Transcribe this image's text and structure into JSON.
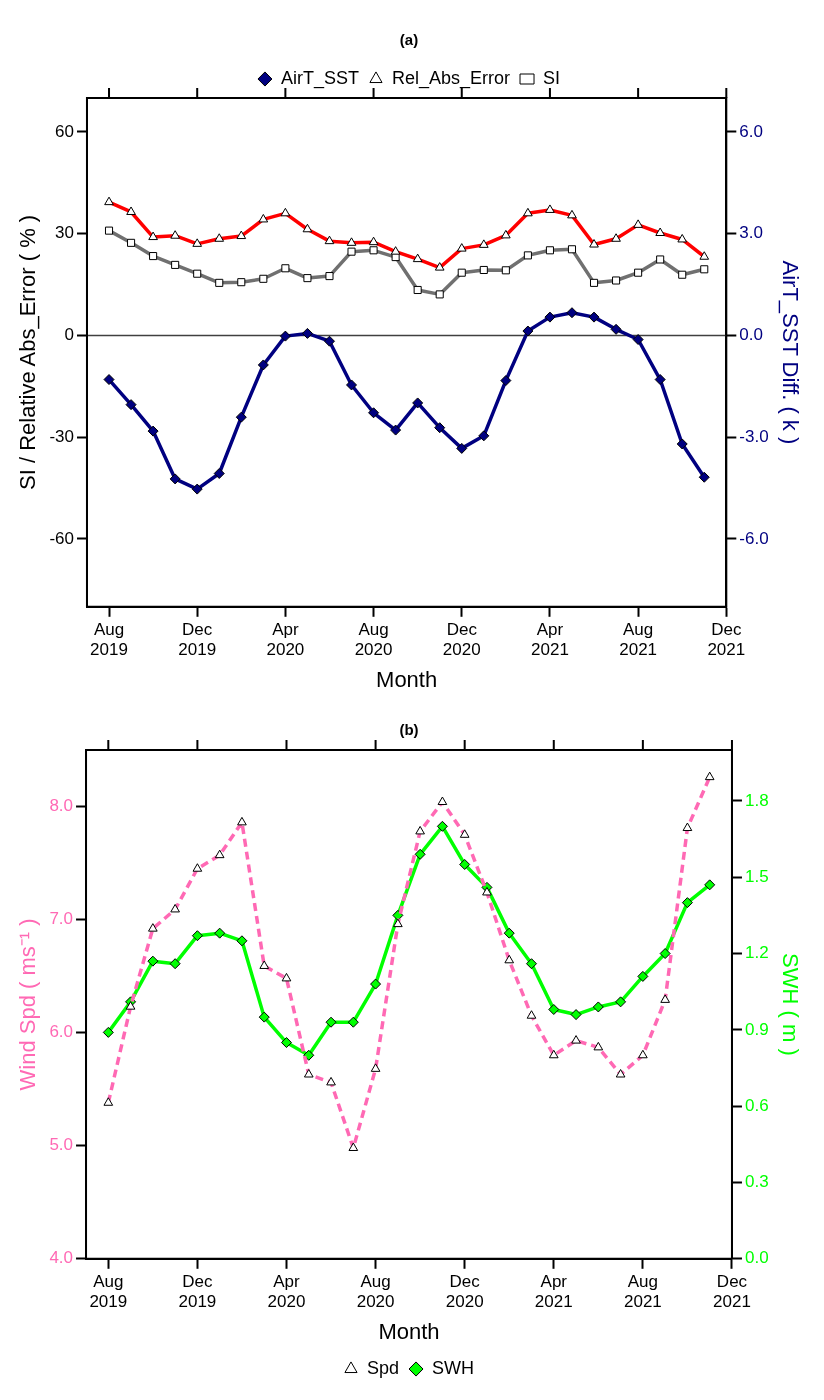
{
  "chart_data": [
    {
      "type": "line",
      "title": "(a)",
      "xlabel": "Month",
      "ylabel": "SI / Relative Abs_Error ( % )",
      "y2label": "AirT_SST Diff. ( k )",
      "x": [
        "2019-08",
        "2019-09",
        "2019-10",
        "2019-11",
        "2019-12",
        "2020-01",
        "2020-02",
        "2020-03",
        "2020-04",
        "2020-05",
        "2020-06",
        "2020-07",
        "2020-08",
        "2020-09",
        "2020-10",
        "2020-11",
        "2020-12",
        "2021-01",
        "2021-02",
        "2021-03",
        "2021-04",
        "2021-05",
        "2021-06",
        "2021-07",
        "2021-08",
        "2021-09",
        "2021-10",
        "2021-11"
      ],
      "xlim": [
        "2019-07",
        "2021-12"
      ],
      "xticks": [
        {
          "value": "2019-08",
          "label": "Aug 2019"
        },
        {
          "value": "2019-12",
          "label": "Dec 2019"
        },
        {
          "value": "2020-04",
          "label": "Apr 2020"
        },
        {
          "value": "2020-08",
          "label": "Aug 2020"
        },
        {
          "value": "2020-12",
          "label": "Dec 2020"
        },
        {
          "value": "2021-04",
          "label": "Apr 2021"
        },
        {
          "value": "2021-08",
          "label": "Aug 2021"
        },
        {
          "value": "2021-12",
          "label": "Dec 2021"
        }
      ],
      "ylim": [
        -80,
        70
      ],
      "yticks": [
        -60,
        -30,
        0,
        30,
        60
      ],
      "y2lim": [
        -8,
        7
      ],
      "y2ticks": [
        {
          "value": -6,
          "label": "-6.0"
        },
        {
          "value": -3,
          "label": "-3.0"
        },
        {
          "value": 0,
          "label": "0.0"
        },
        {
          "value": 3,
          "label": "3.0"
        },
        {
          "value": 6,
          "label": "6.0"
        }
      ],
      "ref_lines": [
        {
          "axis": "y",
          "value": 0,
          "color": "#404040"
        }
      ],
      "legend": "top",
      "grid": false,
      "series": [
        {
          "name": "SI",
          "color": "#707070",
          "marker": "square",
          "values": [
            30.9,
            27.3,
            23.4,
            20.8,
            18.2,
            15.5,
            15.7,
            16.7,
            19.8,
            16.9,
            17.5,
            24.7,
            25.1,
            23.1,
            13.4,
            12.1,
            18.5,
            19.3,
            19.2,
            23.6,
            25.1,
            25.4,
            15.5,
            16.2,
            18.5,
            22.4,
            17.9,
            19.5
          ]
        },
        {
          "name": "Rel_Abs_Error",
          "color": "#ff0000",
          "marker": "triangle",
          "values": [
            39.3,
            36.4,
            29.0,
            29.4,
            27.0,
            28.5,
            29.3,
            34.2,
            36.0,
            31.3,
            27.8,
            27.3,
            27.5,
            24.7,
            22.5,
            20.0,
            25.6,
            26.7,
            29.5,
            36.0,
            37.0,
            35.4,
            26.8,
            28.5,
            32.6,
            30.2,
            28.3,
            23.2
          ]
        },
        {
          "name": "AirT_SST",
          "color": "#000080",
          "marker": "diamond",
          "axis": "y2",
          "values": [
            -1.3,
            -2.04,
            -2.82,
            -4.23,
            -4.53,
            -4.07,
            -2.41,
            -0.87,
            -0.02,
            0.06,
            -0.17,
            -1.46,
            -2.28,
            -2.79,
            -1.99,
            -2.72,
            -3.33,
            -2.96,
            -1.33,
            0.13,
            0.54,
            0.67,
            0.54,
            0.18,
            -0.12,
            -1.3,
            -3.2,
            -4.18
          ]
        }
      ]
    },
    {
      "type": "line",
      "title": "(b)",
      "xlabel": "Month",
      "ylabel": "Wind Spd ( ms⁻¹ )",
      "y2label": "SWH ( m )",
      "x": [
        "2019-08",
        "2019-09",
        "2019-10",
        "2019-11",
        "2019-12",
        "2020-01",
        "2020-02",
        "2020-03",
        "2020-04",
        "2020-05",
        "2020-06",
        "2020-07",
        "2020-08",
        "2020-09",
        "2020-10",
        "2020-11",
        "2020-12",
        "2021-01",
        "2021-02",
        "2021-03",
        "2021-04",
        "2021-05",
        "2021-06",
        "2021-07",
        "2021-08",
        "2021-09",
        "2021-10",
        "2021-11"
      ],
      "xlim": [
        "2019-07",
        "2021-12"
      ],
      "xticks": [
        {
          "value": "2019-08",
          "label": "Aug 2019"
        },
        {
          "value": "2019-12",
          "label": "Dec 2019"
        },
        {
          "value": "2020-04",
          "label": "Apr 2020"
        },
        {
          "value": "2020-08",
          "label": "Aug 2020"
        },
        {
          "value": "2020-12",
          "label": "Dec 2020"
        },
        {
          "value": "2021-04",
          "label": "Apr 2021"
        },
        {
          "value": "2021-08",
          "label": "Aug 2021"
        },
        {
          "value": "2021-12",
          "label": "Dec 2021"
        }
      ],
      "ylim": [
        4,
        8.5
      ],
      "yticks": [
        {
          "value": 4,
          "label": "4.0"
        },
        {
          "value": 5,
          "label": "5.0"
        },
        {
          "value": 6,
          "label": "6.0"
        },
        {
          "value": 7,
          "label": "7.0"
        },
        {
          "value": 8,
          "label": "8.0"
        }
      ],
      "y2lim": [
        0,
        2
      ],
      "y2ticks": [
        {
          "value": 0,
          "label": "0.0"
        },
        {
          "value": 0.3,
          "label": "0.3"
        },
        {
          "value": 0.6,
          "label": "0.6"
        },
        {
          "value": 0.9,
          "label": "0.9"
        },
        {
          "value": 1.2,
          "label": "1.2"
        },
        {
          "value": 1.5,
          "label": "1.5"
        },
        {
          "value": 1.8,
          "label": "1.8"
        }
      ],
      "legend": "bottom",
      "grid": false,
      "series": [
        {
          "name": "SWH",
          "color": "#00ff00",
          "marker": "diamond",
          "axis": "y2",
          "values": [
            0.89,
            1.01,
            1.17,
            1.16,
            1.27,
            1.28,
            1.25,
            0.95,
            0.85,
            0.8,
            0.93,
            0.93,
            1.08,
            1.35,
            1.59,
            1.7,
            1.55,
            1.46,
            1.28,
            1.16,
            0.98,
            0.96,
            0.99,
            1.01,
            1.11,
            1.2,
            1.4,
            1.47
          ]
        },
        {
          "name": "Spd",
          "color": "#ff69b4",
          "marker": "triangle",
          "line_style": "dashed",
          "values": [
            5.38,
            6.23,
            6.92,
            7.09,
            7.45,
            7.57,
            7.86,
            6.59,
            6.48,
            5.63,
            5.56,
            4.98,
            5.68,
            6.96,
            7.78,
            8.04,
            7.75,
            7.24,
            6.64,
            6.15,
            5.8,
            5.93,
            5.87,
            5.63,
            5.8,
            6.29,
            7.81,
            8.26
          ]
        }
      ]
    }
  ]
}
